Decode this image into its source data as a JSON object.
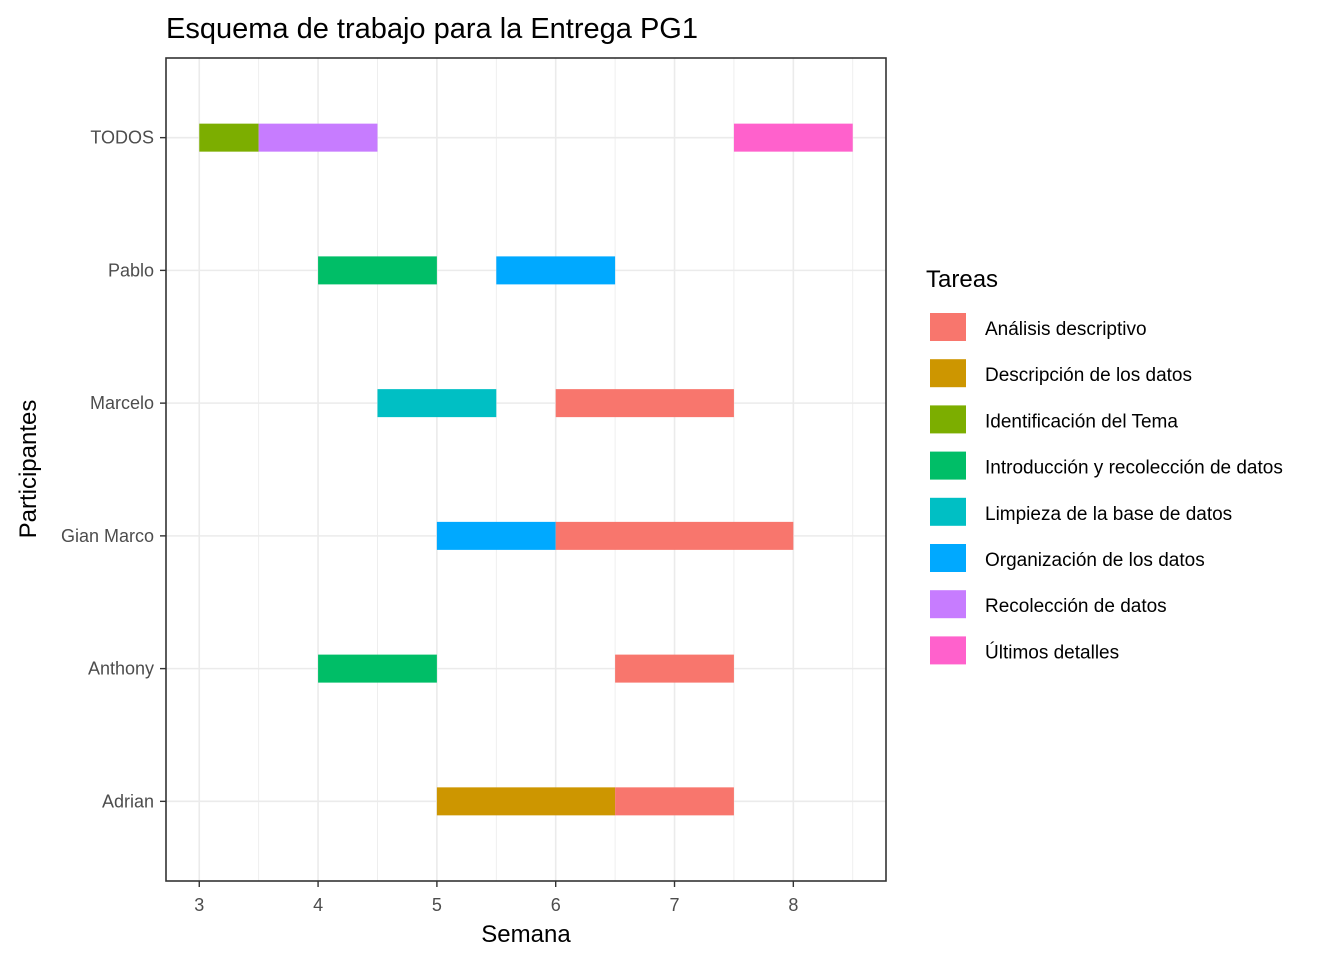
{
  "chart_data": {
    "type": "gantt",
    "title": "Esquema de trabajo para la Entrega PG1",
    "xlabel": "Semana",
    "ylabel": "Participantes",
    "xlim": [
      2.72,
      8.78
    ],
    "xticks": [
      3,
      4,
      5,
      6,
      7,
      8
    ],
    "grid": true,
    "legend_placement": "right",
    "categories": [
      "Adrian",
      "Anthony",
      "Gian Marco",
      "Marcelo",
      "Pablo",
      "TODOS"
    ],
    "legend": {
      "title": "Tareas",
      "items": [
        {
          "label": "Análisis descriptivo",
          "color": "#F8766D"
        },
        {
          "label": "Descripción de los datos",
          "color": "#CD9600"
        },
        {
          "label": "Identificación del Tema",
          "color": "#7CAE00"
        },
        {
          "label": "Introducción y recolección de datos",
          "color": "#00BE67"
        },
        {
          "label": "Limpieza de la base de datos",
          "color": "#00BFC4"
        },
        {
          "label": "Organización de los datos",
          "color": "#00A9FF"
        },
        {
          "label": "Recolección de datos",
          "color": "#C77CFF"
        },
        {
          "label": "Últimos detalles",
          "color": "#FF61CC"
        }
      ]
    },
    "tasks": [
      {
        "participant": "TODOS",
        "task": "Identificación del Tema",
        "start": 3,
        "end": 3.5
      },
      {
        "participant": "TODOS",
        "task": "Recolección de datos",
        "start": 3.5,
        "end": 4.5
      },
      {
        "participant": "TODOS",
        "task": "Últimos detalles",
        "start": 7.5,
        "end": 8.5
      },
      {
        "participant": "Pablo",
        "task": "Introducción y recolección de datos",
        "start": 4,
        "end": 5
      },
      {
        "participant": "Pablo",
        "task": "Organización de los datos",
        "start": 5.5,
        "end": 6.5
      },
      {
        "participant": "Marcelo",
        "task": "Limpieza de la base de datos",
        "start": 4.5,
        "end": 5.5
      },
      {
        "participant": "Marcelo",
        "task": "Análisis descriptivo",
        "start": 6,
        "end": 7.5
      },
      {
        "participant": "Gian Marco",
        "task": "Organización de los datos",
        "start": 5,
        "end": 6
      },
      {
        "participant": "Gian Marco",
        "task": "Análisis descriptivo",
        "start": 6,
        "end": 8
      },
      {
        "participant": "Anthony",
        "task": "Introducción y recolección de datos",
        "start": 4,
        "end": 5
      },
      {
        "participant": "Anthony",
        "task": "Análisis descriptivo",
        "start": 6.5,
        "end": 7.5
      },
      {
        "participant": "Adrian",
        "task": "Descripción de los datos",
        "start": 5,
        "end": 6.5
      },
      {
        "participant": "Adrian",
        "task": "Análisis descriptivo",
        "start": 6.5,
        "end": 7.5
      }
    ]
  }
}
